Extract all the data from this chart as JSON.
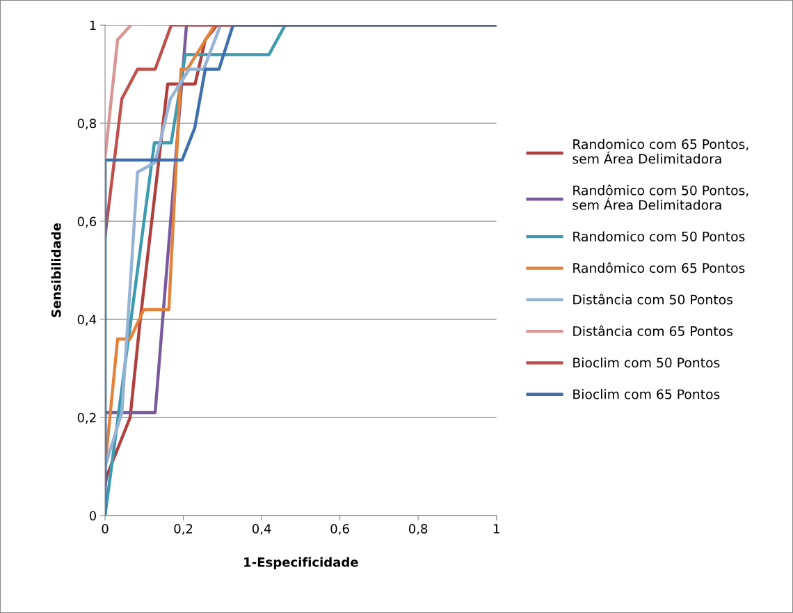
{
  "chart_data": {
    "type": "line",
    "xlabel": "1-Especificidade",
    "ylabel": "Sensibilidade",
    "xlim": [
      0,
      1
    ],
    "ylim": [
      0,
      1
    ],
    "xticks": [
      0,
      {
        "value": 0.2,
        "label": "0,2"
      },
      {
        "value": 0.4,
        "label": "0,4"
      },
      {
        "value": 0.6,
        "label": "0,6"
      },
      {
        "value": 0.8,
        "label": "0,8"
      },
      1
    ],
    "yticks": [
      0,
      {
        "value": 0.2,
        "label": "0,2"
      },
      {
        "value": 0.4,
        "label": "0,4"
      },
      {
        "value": 0.6,
        "label": "0,6"
      },
      {
        "value": 0.8,
        "label": "0,8"
      },
      1
    ],
    "grid": "y",
    "legend": "right",
    "marker": "none",
    "line_style": "solid",
    "series": [
      {
        "name": "Randomico com 65 Pontos,\nsem Área Delimitadora",
        "color": "#b0403d",
        "x": [
          0,
          0.004,
          0.064,
          0.09,
          0.128,
          0.16,
          0.23,
          0.256,
          0.286,
          1
        ],
        "values": [
          0.06,
          0.08,
          0.2,
          0.4,
          0.66,
          0.88,
          0.88,
          0.97,
          1,
          1
        ]
      },
      {
        "name": "Randômico com 50 Pontos,\nsem Área Delimitadora",
        "color": "#7a5a9e",
        "x": [
          0,
          0,
          0.128,
          0.208,
          1
        ],
        "values": [
          0,
          0.21,
          0.21,
          1,
          1
        ]
      },
      {
        "name": "Randomico com 50 Pontos",
        "color": "#3d9bb0",
        "x": [
          0,
          0.126,
          0.169,
          0.205,
          0.419,
          0.46,
          1
        ],
        "values": [
          0,
          0.76,
          0.76,
          0.94,
          0.94,
          1,
          1
        ]
      },
      {
        "name": "Randômico com 65 Pontos",
        "color": "#e3823a",
        "x": [
          0,
          0.032,
          0.064,
          0.099,
          0.163,
          0.194,
          0.21,
          0.28,
          1
        ],
        "values": [
          0.1,
          0.36,
          0.36,
          0.42,
          0.42,
          0.91,
          0.91,
          1,
          1
        ]
      },
      {
        "name": "Distância com 50 Pontos",
        "color": "#95b3d7",
        "x": [
          0,
          0.043,
          0.083,
          0.128,
          0.167,
          0.215,
          0.252,
          0.295,
          1
        ],
        "values": [
          0.1,
          0.21,
          0.7,
          0.72,
          0.85,
          0.91,
          0.91,
          1,
          1
        ]
      },
      {
        "name": "Distância com 65 Pontos",
        "color": "#d99694",
        "x": [
          0,
          0.032,
          0.066
        ],
        "values": [
          0.73,
          0.97,
          1
        ]
      },
      {
        "name": "Bioclim com 50 Pontos",
        "color": "#c0504d",
        "x": [
          0,
          0.043,
          0.083,
          0.128,
          0.169,
          1
        ],
        "values": [
          0.57,
          0.85,
          0.91,
          0.91,
          1,
          1
        ]
      },
      {
        "name": "Bioclim com 65 Pontos",
        "color": "#3f6fad",
        "x": [
          0,
          0,
          0.197,
          0.229,
          0.256,
          0.291,
          0.327,
          1
        ],
        "values": [
          0,
          0.725,
          0.725,
          0.79,
          0.91,
          0.91,
          1,
          1
        ]
      }
    ]
  }
}
